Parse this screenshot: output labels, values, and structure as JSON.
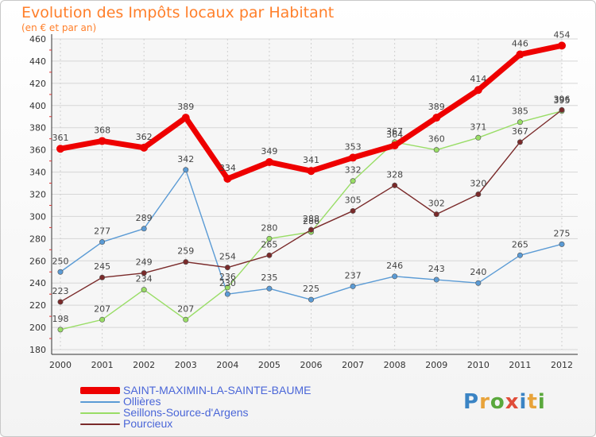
{
  "header": {
    "title": "Evolution des Impôts locaux par Habitant",
    "subtitle": "(en € et par an)"
  },
  "logo": {
    "text": "Proxiti",
    "letter_colors": [
      "#3b84c4",
      "#e8a33a",
      "#5aa83c",
      "#e04d3a",
      "#3b84c4",
      "#e8a33a",
      "#5aa83c"
    ]
  },
  "chart_data": {
    "type": "line",
    "title": "Evolution des Impôts locaux par Habitant",
    "subtitle": "(en € et par an)",
    "xlabel": "",
    "ylabel": "",
    "categories": [
      "2000",
      "2001",
      "2002",
      "2003",
      "2004",
      "2005",
      "2006",
      "2007",
      "2008",
      "2009",
      "2010",
      "2011",
      "2012"
    ],
    "ylim": [
      180,
      460
    ],
    "yticks": [
      180,
      200,
      220,
      240,
      260,
      280,
      300,
      320,
      340,
      360,
      380,
      400,
      420,
      440,
      460
    ],
    "grid": true,
    "legend_position": "bottom-left",
    "series": [
      {
        "name": "SAINT-MAXIMIN-LA-SAINTE-BAUME",
        "color": "#ee0000",
        "values": [
          361,
          368,
          362,
          389,
          334,
          349,
          341,
          353,
          364,
          389,
          414,
          446,
          454
        ],
        "labels": [
          "361",
          "368",
          "362",
          "389",
          "334",
          "349",
          "341",
          "353",
          "364",
          "389",
          "414",
          "446",
          "454"
        ]
      },
      {
        "name": "Ollières",
        "color": "#5b9bd5",
        "values": [
          250,
          277,
          289,
          342,
          230,
          235,
          225,
          237,
          246,
          243,
          240,
          265,
          275
        ],
        "labels": [
          "250",
          "277",
          "289",
          "342",
          "230",
          "235",
          "225",
          "237",
          "246",
          "243",
          "240",
          "265",
          "275"
        ]
      },
      {
        "name": "Seillons-Source-d'Argens",
        "color": "#99dd66",
        "values": [
          198,
          207,
          234,
          207,
          236,
          280,
          286,
          332,
          367,
          360,
          371,
          385,
          395
        ],
        "labels": [
          "198",
          "207",
          "234",
          "207",
          "236",
          "280",
          "286",
          "332",
          "367",
          "360",
          "371",
          "385",
          "395"
        ]
      },
      {
        "name": "Pourcieux",
        "color": "#7a2a2a",
        "values": [
          223,
          245,
          249,
          259,
          254,
          265,
          288,
          305,
          328,
          302,
          320,
          367,
          396
        ],
        "labels": [
          "223",
          "245",
          "249",
          "259",
          "254",
          "265",
          "288",
          "305",
          "328",
          "302",
          "320",
          "367",
          "396"
        ]
      }
    ]
  }
}
